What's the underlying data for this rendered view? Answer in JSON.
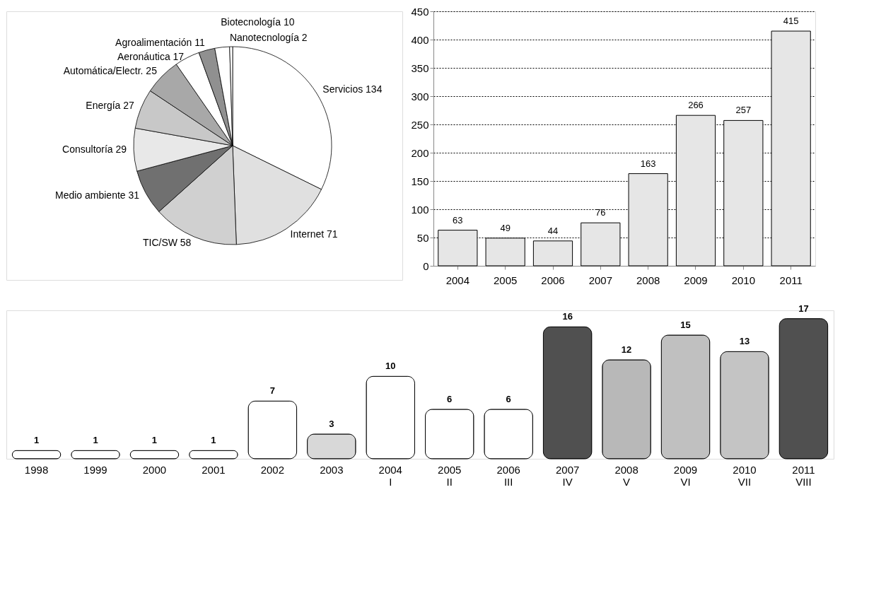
{
  "chart_data": [
    {
      "type": "pie",
      "categories": [
        "Servicios 134",
        "Internet 71",
        "TIC/SW 58",
        "Medio ambiente 31",
        "Consultoría 29",
        "Energía 27",
        "Automática/Electr. 25",
        "Aeronáutica 17",
        "Agroalimentación 11",
        "Biotecnología 10",
        "Nanotecnología 2"
      ],
      "values": [
        134,
        71,
        58,
        31,
        29,
        27,
        25,
        17,
        11,
        10,
        2
      ],
      "colors": [
        "#ffffff",
        "#e0e0e0",
        "#d0d0d0",
        "#707070",
        "#e8e8e8",
        "#c8c8c8",
        "#a8a8a8",
        "#ffffff",
        "#909090",
        "#ffffff",
        "#ffffff"
      ]
    },
    {
      "type": "bar",
      "categories": [
        "2004",
        "2005",
        "2006",
        "2007",
        "2008",
        "2009",
        "2010",
        "2011"
      ],
      "values": [
        63,
        49,
        44,
        76,
        163,
        266,
        257,
        415
      ],
      "color": "#e6e6e6",
      "ylim": [
        0,
        450
      ],
      "yticks": [
        0,
        50,
        100,
        150,
        200,
        250,
        300,
        350,
        400,
        450
      ],
      "grid": "y",
      "data_labels": true
    },
    {
      "type": "bar",
      "categories": [
        "1998",
        "1999",
        "2000",
        "2001",
        "2002",
        "2003",
        "2004\nI",
        "2005\nII",
        "2006\nIII",
        "2007\nIV",
        "2008\nV",
        "2009\nVI",
        "2010\nVII",
        "2011\nVIII"
      ],
      "values": [
        1,
        1,
        1,
        1,
        7,
        3,
        10,
        6,
        6,
        16,
        12,
        15,
        13,
        17
      ],
      "colors": [
        "#ffffff",
        "#ffffff",
        "#ffffff",
        "#ffffff",
        "#ffffff",
        "#d8d8d8",
        "#ffffff",
        "#ffffff",
        "#ffffff",
        "#505050",
        "#b8b8b8",
        "#c0c0c0",
        "#c4c4c4",
        "#505050"
      ],
      "data_labels": true,
      "tick_labels": "x"
    }
  ]
}
